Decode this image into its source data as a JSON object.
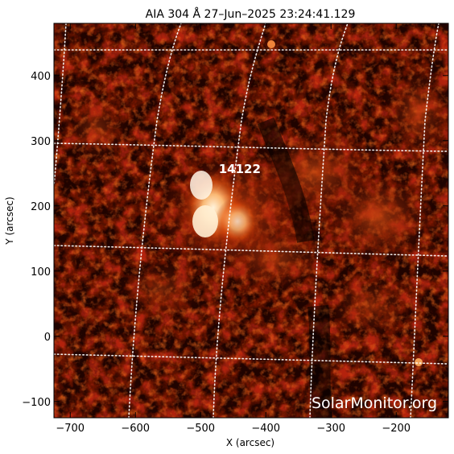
{
  "title": "AIA 304 Å 27–Jun–2025 23:24:41.129",
  "axes": {
    "xlabel": "X (arcsec)",
    "ylabel": "Y (arcsec)",
    "xlim": [
      -725,
      -120
    ],
    "ylim": [
      -125,
      480
    ],
    "xticks": [
      {
        "value": -700,
        "label": "−700"
      },
      {
        "value": -600,
        "label": "−600"
      },
      {
        "value": -500,
        "label": "−500"
      },
      {
        "value": -400,
        "label": "−400"
      },
      {
        "value": -300,
        "label": "−300"
      },
      {
        "value": -200,
        "label": "−200"
      }
    ],
    "yticks": [
      {
        "value": 400,
        "label": "400"
      },
      {
        "value": 300,
        "label": "300"
      },
      {
        "value": 200,
        "label": "200"
      },
      {
        "value": 100,
        "label": "100"
      },
      {
        "value": 0,
        "label": "0"
      },
      {
        "value": -100,
        "label": "−100"
      }
    ]
  },
  "active_region": {
    "label": "14122",
    "x": -440,
    "y": 275
  },
  "watermark": "SolarMonitor.org",
  "colors": {
    "background": "#000000",
    "dim": "#3a0600",
    "mid": "#9c1c00",
    "bright": "#e85a10",
    "hot": "#ffd9a0",
    "grid": "#ffffff"
  }
}
